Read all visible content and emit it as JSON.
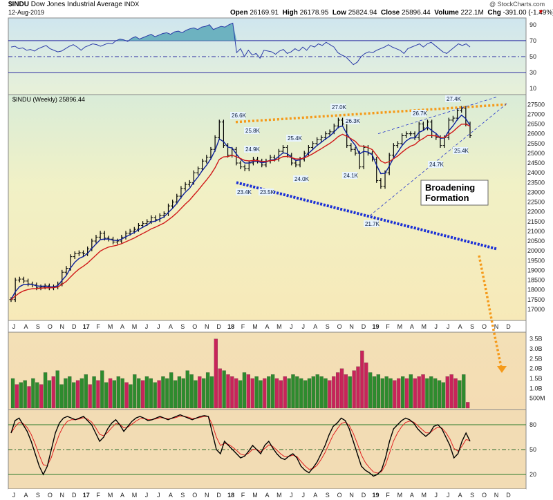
{
  "header": {
    "symbol": "$INDU",
    "name": "Dow Jones Industrial Average",
    "exchange": "INDX",
    "date": "12-Aug-2019",
    "watermark": "@ StockCharts.com",
    "open_label": "Open",
    "open": "26169.91",
    "high_label": "High",
    "high": "26178.95",
    "low_label": "Low",
    "low": "25824.94",
    "close_label": "Close",
    "close": "25896.44",
    "volume_label": "Volume",
    "volume": "222.1M",
    "chg_label": "Chg",
    "chg": "-391.00 (-1.49%)",
    "price_legend": "$INDU (Weekly) 25896.44"
  },
  "annotations": {
    "pattern_line1": "Broadening",
    "pattern_line2": "Formation"
  },
  "colors": {
    "up_bar": "#2e8b2e",
    "down_bar": "#c8245a",
    "ma_fast": "#0a1e9c",
    "ma_slow": "#d01818",
    "resistance": "#f59a1a",
    "support": "#1a2fd6",
    "rsi_fill": "#5aa8b8",
    "bg_price": "#f7f3c6",
    "bg_panel": "#f3dfb8"
  },
  "chart_data": [
    {
      "type": "line",
      "panel": "indicator-top",
      "yticks": [
        90,
        70,
        50,
        30,
        10
      ],
      "ylim": [
        5,
        95
      ],
      "hlines": [
        70,
        50,
        30
      ],
      "values": [
        62,
        63,
        60,
        61,
        58,
        59,
        57,
        60,
        62,
        64,
        60,
        58,
        56,
        57,
        60,
        63,
        65,
        62,
        58,
        62,
        64,
        66,
        65,
        63,
        65,
        67,
        66,
        70,
        72,
        71,
        69,
        73,
        75,
        72,
        74,
        76,
        78,
        75,
        77,
        79,
        80,
        78,
        81,
        82,
        80,
        83,
        85,
        86,
        84,
        87,
        88,
        90,
        84,
        86,
        88,
        87,
        90,
        92,
        55,
        60,
        50,
        58,
        52,
        54,
        48,
        58,
        57,
        56,
        53,
        57,
        59,
        54,
        56,
        60,
        57,
        62,
        58,
        64,
        62,
        66,
        64,
        68,
        65,
        62,
        55,
        52,
        50,
        45,
        40,
        43,
        50,
        54,
        56,
        55,
        58,
        60,
        62,
        65,
        62,
        60,
        58,
        54,
        60,
        62,
        64,
        66,
        62,
        66,
        68,
        64,
        60,
        56,
        54,
        58,
        62,
        66,
        64,
        66,
        62
      ]
    },
    {
      "type": "line",
      "panel": "price",
      "title": "$INDU (Weekly) 25896.44",
      "x_ticks": [
        "J",
        "A",
        "S",
        "O",
        "N",
        "D",
        "17",
        "F",
        "M",
        "A",
        "M",
        "J",
        "J",
        "A",
        "S",
        "O",
        "N",
        "D",
        "18",
        "F",
        "M",
        "A",
        "M",
        "J",
        "J",
        "A",
        "S",
        "O",
        "N",
        "D",
        "19",
        "F",
        "M",
        "A",
        "M",
        "J",
        "J",
        "A",
        "S",
        "O",
        "N",
        "D"
      ],
      "ylim": [
        16500,
        27900
      ],
      "yticks": [
        17000,
        17500,
        18000,
        18500,
        19000,
        19500,
        20000,
        20500,
        21000,
        21500,
        22000,
        22500,
        23000,
        23500,
        24000,
        24500,
        25000,
        25500,
        26000,
        26500,
        27000,
        27500
      ],
      "weekly_close": [
        17500,
        18500,
        18550,
        18450,
        18300,
        18250,
        18100,
        18150,
        18200,
        18100,
        18150,
        18300,
        18900,
        19100,
        19700,
        19850,
        19900,
        19850,
        20100,
        20500,
        20700,
        20900,
        20650,
        20600,
        20450,
        20500,
        20700,
        20900,
        21000,
        21100,
        21300,
        21400,
        21500,
        21700,
        21600,
        21800,
        21900,
        22300,
        22500,
        22800,
        23200,
        23400,
        23500,
        24000,
        24200,
        24600,
        24800,
        25200,
        25800,
        26600,
        25400,
        24900,
        25200,
        24500,
        24300,
        24200,
        24500,
        24700,
        24600,
        24400,
        24600,
        24800,
        24700,
        25100,
        25300,
        24900,
        24500,
        24400,
        24700,
        25000,
        25300,
        25500,
        25700,
        25800,
        26000,
        26100,
        26400,
        26700,
        26500,
        25400,
        25200,
        25000,
        24300,
        25300,
        25000,
        24700,
        23600,
        23300,
        24000,
        24900,
        25400,
        25500,
        25900,
        26000,
        26000,
        25800,
        26500,
        26300,
        26600,
        25900,
        25800,
        25400,
        25800,
        26700,
        26800,
        27200,
        27300,
        26500,
        25900
      ],
      "ma_fast_label": "blue",
      "ma_slow_label": "red",
      "peak_labels": [
        "26.6K",
        "25.8K",
        "24.9K",
        "25.4K",
        "27.0K",
        "26.3K",
        "26.7K",
        "27.4K",
        "23.4K",
        "23.5K",
        "24.0K",
        "24.1K",
        "24.7K",
        "25.4K",
        "21.7K"
      ]
    },
    {
      "type": "bar",
      "panel": "volume",
      "yticks": [
        "3.5B",
        "3.0B",
        "2.5B",
        "2.0B",
        "1.5B",
        "1.0B",
        "500M"
      ],
      "ylim": [
        0,
        3.7
      ],
      "values": [
        1.5,
        1.2,
        1.3,
        1.4,
        1.1,
        1.5,
        1.3,
        1.2,
        1.8,
        1.4,
        1.6,
        1.9,
        1.2,
        1.5,
        1.6,
        1.3,
        1.4,
        1.5,
        1.7,
        1.2,
        1.6,
        1.4,
        1.9,
        1.3,
        1.5,
        1.4,
        1.6,
        1.5,
        1.3,
        1.2,
        1.7,
        1.5,
        1.4,
        1.6,
        1.5,
        1.3,
        1.4,
        1.6,
        1.5,
        1.8,
        1.4,
        1.6,
        1.5,
        1.9,
        1.7,
        1.4,
        1.6,
        1.5,
        1.8,
        1.6,
        3.5,
        2.0,
        1.9,
        1.7,
        1.6,
        1.5,
        1.4,
        1.8,
        1.7,
        1.5,
        1.6,
        1.4,
        1.5,
        1.6,
        1.7,
        1.5,
        1.4,
        1.6,
        1.5,
        1.7,
        1.6,
        1.5,
        1.4,
        1.5,
        1.6,
        1.7,
        1.6,
        1.5,
        1.4,
        1.6,
        1.8,
        2.0,
        1.7,
        1.6,
        1.9,
        2.1,
        2.9,
        2.3,
        1.8,
        1.6,
        1.7,
        1.5,
        1.6,
        1.5,
        1.4,
        1.5,
        1.6,
        1.5,
        1.7,
        1.5,
        1.6,
        1.7,
        1.5,
        1.6,
        1.5,
        1.4,
        1.3,
        1.6,
        1.7,
        1.5,
        1.4,
        1.7,
        0.3
      ],
      "up": [
        1,
        0,
        1,
        1,
        0,
        1,
        1,
        0,
        1,
        1,
        0,
        1,
        1,
        1,
        1,
        1,
        0,
        1,
        1,
        0,
        1,
        0,
        1,
        1,
        0,
        1,
        1,
        1,
        0,
        1,
        1,
        1,
        0,
        1,
        1,
        1,
        0,
        1,
        1,
        1,
        1,
        1,
        1,
        1,
        1,
        1,
        0,
        1,
        1,
        1,
        0,
        0,
        1,
        0,
        0,
        0,
        1,
        1,
        0,
        0,
        1,
        1,
        0,
        1,
        1,
        0,
        0,
        0,
        1,
        1,
        1,
        1,
        1,
        1,
        1,
        1,
        1,
        1,
        0,
        0,
        0,
        0,
        0,
        1,
        0,
        0,
        0,
        0,
        1,
        1,
        1,
        1,
        1,
        1,
        0,
        0,
        1,
        0,
        1,
        0,
        0,
        0,
        1,
        1,
        1,
        1,
        1,
        0,
        0,
        0,
        1,
        1,
        0
      ]
    },
    {
      "type": "line",
      "panel": "stochastic",
      "yticks": [
        80,
        50,
        20
      ],
      "ylim": [
        5,
        95
      ],
      "hlines": [
        80,
        50,
        20
      ],
      "k": [
        70,
        85,
        88,
        80,
        72,
        60,
        45,
        30,
        20,
        30,
        50,
        70,
        82,
        88,
        90,
        88,
        86,
        88,
        90,
        85,
        80,
        70,
        60,
        65,
        75,
        82,
        86,
        80,
        72,
        78,
        84,
        88,
        90,
        88,
        85,
        86,
        88,
        90,
        88,
        86,
        88,
        90,
        92,
        90,
        88,
        86,
        88,
        90,
        91,
        90,
        70,
        50,
        45,
        60,
        55,
        50,
        45,
        40,
        42,
        48,
        55,
        50,
        45,
        55,
        60,
        52,
        45,
        40,
        38,
        42,
        45,
        40,
        30,
        25,
        22,
        28,
        35,
        45,
        55,
        68,
        78,
        82,
        88,
        85,
        75,
        60,
        45,
        30,
        25,
        22,
        18,
        20,
        25,
        40,
        60,
        75,
        80,
        85,
        88,
        86,
        82,
        75,
        70,
        66,
        70,
        78,
        80,
        75,
        65,
        55,
        40,
        45,
        60,
        70,
        60
      ]
    },
    {
      "type": "bar",
      "panel": "x-axis",
      "x_ticks": [
        "J",
        "A",
        "S",
        "O",
        "N",
        "D",
        "17",
        "F",
        "M",
        "A",
        "M",
        "J",
        "J",
        "A",
        "S",
        "O",
        "N",
        "D",
        "18",
        "F",
        "M",
        "A",
        "M",
        "J",
        "J",
        "A",
        "S",
        "O",
        "N",
        "D",
        "19",
        "F",
        "M",
        "A",
        "M",
        "J",
        "J",
        "A",
        "S",
        "O",
        "N",
        "D"
      ]
    }
  ]
}
